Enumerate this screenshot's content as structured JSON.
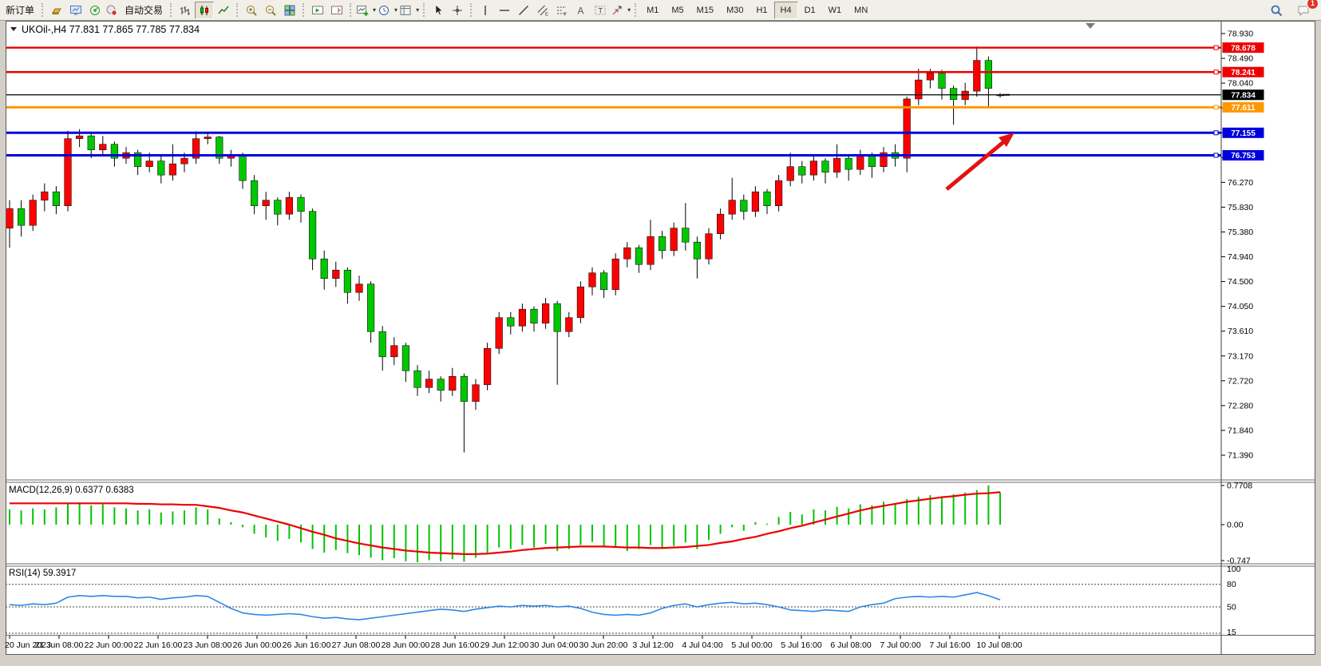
{
  "toolbar": {
    "new_order_label": "新订单",
    "autotrading_label": "自动交易",
    "timeframes": [
      "M1",
      "M5",
      "M15",
      "M30",
      "H1",
      "H4",
      "D1",
      "W1",
      "MN"
    ],
    "active_timeframe": "H4",
    "notification_count": "1",
    "icons": [
      "market-watch",
      "data-window",
      "navigator",
      "auto-trading",
      "bar-chart",
      "candlestick-chart",
      "line-chart",
      "zoom-in",
      "zoom-out",
      "tile-windows",
      "auto-scroll",
      "chart-shift",
      "insert-indicator",
      "period-selector",
      "chart-template",
      "cursor",
      "crosshair",
      "vertical-line",
      "horizontal-line",
      "trend-line",
      "equidistant-channel",
      "fibonacci",
      "text",
      "text-label",
      "arrow-objects",
      "search",
      "chat"
    ]
  },
  "chart": {
    "title_line": "UKOil-,H4 77.831 77.865 77.785 77.834",
    "symbol": "UKOil-",
    "timeframe": "H4"
  },
  "price_axis": {
    "ticks": [
      "78.930",
      "78.490",
      "78.040",
      "77.600",
      "77.150",
      "76.710",
      "76.270",
      "75.830",
      "75.380",
      "74.940",
      "74.500",
      "74.050",
      "73.610",
      "73.170",
      "72.720",
      "72.280",
      "71.840",
      "71.390"
    ]
  },
  "hlines": [
    {
      "label": "78.678",
      "value": 78.678,
      "color": "#ee0000"
    },
    {
      "label": "78.241",
      "value": 78.241,
      "color": "#ee0000"
    },
    {
      "label": "77.834",
      "value": 77.834,
      "color": "#000000"
    },
    {
      "label": "77.611",
      "value": 77.611,
      "color": "#ff9800"
    },
    {
      "label": "77.155",
      "value": 77.155,
      "color": "#0000dd"
    },
    {
      "label": "76.753",
      "value": 76.753,
      "color": "#0000dd"
    }
  ],
  "indicators": {
    "macd": {
      "label": "MACD(12,26,9) 0.6377 0.6383",
      "axis": [
        "0.7708",
        "0.00",
        "-0.747"
      ],
      "axis_values": [
        0.7708,
        0.0,
        -0.747
      ]
    },
    "rsi": {
      "label": "RSI(14) 59.3917",
      "axis": [
        "100",
        "80",
        "50",
        "15"
      ],
      "levels": [
        80,
        50,
        15
      ]
    }
  },
  "x_axis": {
    "labels": [
      "20 Jun 2023",
      "21 Jun 08:00",
      "22 Jun 00:00",
      "22 Jun 16:00",
      "23 Jun 08:00",
      "26 Jun 00:00",
      "26 Jun 16:00",
      "27 Jun 08:00",
      "28 Jun 00:00",
      "28 Jun 16:00",
      "29 Jun 12:00",
      "30 Jun 04:00",
      "30 Jun 20:00",
      "3 Jul 12:00",
      "4 Jul 04:00",
      "5 Jul 00:00",
      "5 Jul 16:00",
      "6 Jul 08:00",
      "7 Jul 00:00",
      "7 Jul 16:00",
      "10 Jul 08:00"
    ]
  },
  "annotations": {
    "trend_arrow_color": "#e31212"
  },
  "chart_data": {
    "type": "candlestick",
    "symbol": "UKOil-",
    "timeframe": "H4",
    "title": "UKOil-,H4",
    "last_ohlc": {
      "open": 77.831,
      "high": 77.865,
      "low": 77.785,
      "close": 77.834
    },
    "price_range": [
      71.39,
      78.93
    ],
    "up_color": "#ff0000",
    "down_color": "#00c800",
    "hline_values": [
      78.678,
      78.241,
      77.834,
      77.611,
      77.155,
      76.753
    ],
    "candles": [
      [
        75.45,
        75.95,
        75.1,
        75.8
      ],
      [
        75.8,
        75.95,
        75.3,
        75.5
      ],
      [
        75.5,
        76.05,
        75.4,
        75.95
      ],
      [
        75.95,
        76.25,
        75.75,
        76.1
      ],
      [
        76.1,
        76.2,
        75.7,
        75.85
      ],
      [
        75.85,
        77.19,
        75.75,
        77.05
      ],
      [
        77.05,
        77.22,
        76.9,
        77.1
      ],
      [
        77.1,
        77.15,
        76.7,
        76.85
      ],
      [
        76.85,
        77.1,
        76.75,
        76.95
      ],
      [
        76.95,
        77.0,
        76.55,
        76.7
      ],
      [
        76.7,
        76.9,
        76.6,
        76.8
      ],
      [
        76.8,
        76.85,
        76.4,
        76.55
      ],
      [
        76.55,
        76.8,
        76.45,
        76.65
      ],
      [
        76.65,
        76.75,
        76.25,
        76.4
      ],
      [
        76.4,
        76.95,
        76.3,
        76.6
      ],
      [
        76.6,
        76.8,
        76.45,
        76.7
      ],
      [
        76.7,
        77.18,
        76.6,
        77.05
      ],
      [
        77.05,
        77.16,
        76.95,
        77.08
      ],
      [
        77.08,
        77.1,
        76.6,
        76.7
      ],
      [
        76.7,
        76.85,
        76.55,
        76.75
      ],
      [
        76.75,
        76.8,
        76.15,
        76.3
      ],
      [
        76.3,
        76.4,
        75.7,
        75.85
      ],
      [
        75.85,
        76.1,
        75.6,
        75.95
      ],
      [
        75.95,
        76.0,
        75.5,
        75.7
      ],
      [
        75.7,
        76.1,
        75.6,
        76.0
      ],
      [
        76.0,
        76.05,
        75.55,
        75.75
      ],
      [
        75.75,
        75.8,
        74.7,
        74.9
      ],
      [
        74.9,
        75.05,
        74.35,
        74.55
      ],
      [
        74.55,
        74.85,
        74.4,
        74.7
      ],
      [
        74.7,
        74.75,
        74.1,
        74.3
      ],
      [
        74.3,
        74.6,
        74.15,
        74.45
      ],
      [
        74.45,
        74.5,
        73.4,
        73.6
      ],
      [
        73.6,
        73.7,
        72.9,
        73.15
      ],
      [
        73.15,
        73.5,
        73.0,
        73.35
      ],
      [
        73.35,
        73.4,
        72.7,
        72.9
      ],
      [
        72.9,
        73.0,
        72.45,
        72.6
      ],
      [
        72.6,
        72.9,
        72.5,
        72.75
      ],
      [
        72.75,
        72.8,
        72.35,
        72.55
      ],
      [
        72.55,
        72.95,
        72.45,
        72.8
      ],
      [
        72.8,
        72.85,
        71.44,
        72.35
      ],
      [
        72.35,
        72.75,
        72.2,
        72.65
      ],
      [
        72.65,
        73.4,
        72.55,
        73.3
      ],
      [
        73.3,
        73.95,
        73.2,
        73.85
      ],
      [
        73.85,
        73.95,
        73.55,
        73.7
      ],
      [
        73.7,
        74.1,
        73.6,
        74.0
      ],
      [
        74.0,
        74.05,
        73.6,
        73.75
      ],
      [
        73.75,
        74.2,
        73.65,
        74.1
      ],
      [
        74.1,
        74.15,
        72.65,
        73.6
      ],
      [
        73.6,
        73.95,
        73.5,
        73.85
      ],
      [
        73.85,
        74.5,
        73.75,
        74.4
      ],
      [
        74.4,
        74.75,
        74.25,
        74.65
      ],
      [
        74.65,
        74.7,
        74.2,
        74.35
      ],
      [
        74.35,
        75.0,
        74.25,
        74.9
      ],
      [
        74.9,
        75.2,
        74.75,
        75.1
      ],
      [
        75.1,
        75.15,
        74.65,
        74.8
      ],
      [
        74.8,
        75.6,
        74.7,
        75.3
      ],
      [
        75.3,
        75.4,
        74.9,
        75.05
      ],
      [
        75.05,
        75.55,
        74.95,
        75.45
      ],
      [
        75.45,
        75.9,
        75.05,
        75.2
      ],
      [
        75.2,
        75.3,
        74.55,
        74.9
      ],
      [
        74.9,
        75.45,
        74.8,
        75.35
      ],
      [
        75.35,
        75.8,
        75.25,
        75.7
      ],
      [
        75.7,
        76.35,
        75.6,
        75.95
      ],
      [
        75.95,
        76.05,
        75.6,
        75.75
      ],
      [
        75.75,
        76.2,
        75.65,
        76.1
      ],
      [
        76.1,
        76.15,
        75.7,
        75.85
      ],
      [
        75.85,
        76.4,
        75.75,
        76.3
      ],
      [
        76.3,
        76.8,
        76.2,
        76.55
      ],
      [
        76.55,
        76.65,
        76.25,
        76.4
      ],
      [
        76.4,
        76.75,
        76.3,
        76.65
      ],
      [
        76.65,
        76.7,
        76.25,
        76.45
      ],
      [
        76.45,
        76.95,
        76.35,
        76.7
      ],
      [
        76.7,
        76.75,
        76.3,
        76.5
      ],
      [
        76.5,
        76.85,
        76.4,
        76.75
      ],
      [
        76.75,
        76.8,
        76.35,
        76.55
      ],
      [
        76.55,
        76.9,
        76.45,
        76.8
      ],
      [
        76.8,
        76.95,
        76.55,
        76.7
      ],
      [
        76.7,
        77.8,
        76.45,
        77.76
      ],
      [
        77.76,
        78.3,
        77.65,
        78.1
      ],
      [
        78.1,
        78.3,
        77.95,
        78.22
      ],
      [
        78.22,
        78.28,
        77.75,
        77.95
      ],
      [
        77.95,
        78.0,
        77.3,
        77.75
      ],
      [
        77.75,
        78.05,
        77.65,
        77.9
      ],
      [
        77.9,
        78.7,
        77.8,
        78.45
      ],
      [
        78.45,
        78.52,
        77.62,
        77.95
      ],
      [
        77.831,
        77.865,
        77.785,
        77.834
      ]
    ],
    "macd": {
      "range": [
        -0.747,
        0.7708
      ],
      "histogram": [
        0.3,
        0.28,
        0.32,
        0.3,
        0.34,
        0.42,
        0.44,
        0.38,
        0.4,
        0.34,
        0.32,
        0.28,
        0.3,
        0.24,
        0.26,
        0.28,
        0.34,
        0.3,
        0.12,
        0.05,
        -0.05,
        -0.18,
        -0.25,
        -0.32,
        -0.28,
        -0.35,
        -0.48,
        -0.55,
        -0.5,
        -0.56,
        -0.6,
        -0.65,
        -0.7,
        -0.66,
        -0.72,
        -0.74,
        -0.7,
        -0.72,
        -0.68,
        -0.73,
        -0.65,
        -0.55,
        -0.45,
        -0.48,
        -0.4,
        -0.45,
        -0.38,
        -0.52,
        -0.48,
        -0.4,
        -0.34,
        -0.42,
        -0.45,
        -0.52,
        -0.48,
        -0.4,
        -0.45,
        -0.42,
        -0.35,
        -0.48,
        -0.3,
        -0.18,
        -0.05,
        -0.12,
        0.05,
        0.02,
        0.15,
        0.25,
        0.2,
        0.3,
        0.28,
        0.35,
        0.32,
        0.4,
        0.38,
        0.45,
        0.42,
        0.5,
        0.55,
        0.58,
        0.56,
        0.6,
        0.63,
        0.68,
        0.7708,
        0.6377
      ],
      "signal": [
        0.42,
        0.42,
        0.42,
        0.42,
        0.42,
        0.42,
        0.42,
        0.42,
        0.42,
        0.42,
        0.42,
        0.41,
        0.41,
        0.4,
        0.4,
        0.39,
        0.39,
        0.36,
        0.33,
        0.28,
        0.24,
        0.18,
        0.12,
        0.06,
        0.0,
        -0.07,
        -0.14,
        -0.2,
        -0.27,
        -0.32,
        -0.37,
        -0.41,
        -0.45,
        -0.48,
        -0.51,
        -0.53,
        -0.55,
        -0.56,
        -0.57,
        -0.58,
        -0.58,
        -0.57,
        -0.55,
        -0.53,
        -0.5,
        -0.48,
        -0.46,
        -0.45,
        -0.44,
        -0.43,
        -0.43,
        -0.43,
        -0.44,
        -0.45,
        -0.45,
        -0.46,
        -0.46,
        -0.45,
        -0.44,
        -0.42,
        -0.4,
        -0.36,
        -0.33,
        -0.28,
        -0.24,
        -0.18,
        -0.13,
        -0.07,
        -0.02,
        0.04,
        0.1,
        0.16,
        0.22,
        0.28,
        0.33,
        0.37,
        0.41,
        0.45,
        0.48,
        0.51,
        0.54,
        0.56,
        0.59,
        0.61,
        0.62,
        0.6383
      ]
    },
    "rsi": {
      "levels": [
        80,
        50,
        15
      ],
      "values": [
        53,
        52,
        54,
        53,
        55,
        63,
        65,
        64,
        65,
        64,
        64,
        62,
        63,
        60,
        62,
        63,
        65,
        64,
        56,
        48,
        42,
        40,
        39,
        40,
        41,
        40,
        37,
        35,
        36,
        34,
        33,
        35,
        37,
        39,
        41,
        43,
        45,
        47,
        46,
        44,
        47,
        49,
        51,
        50,
        52,
        51,
        52,
        50,
        51,
        48,
        43,
        40,
        39,
        40,
        39,
        42,
        48,
        52,
        54,
        50,
        53,
        55,
        56,
        54,
        55,
        53,
        50,
        46,
        45,
        44,
        46,
        45,
        44,
        50,
        53,
        55,
        61,
        63,
        64,
        63,
        64,
        63,
        66,
        69,
        65,
        59.39
      ]
    },
    "x_labels": [
      "20 Jun 2023",
      "21 Jun 08:00",
      "22 Jun 00:00",
      "22 Jun 16:00",
      "23 Jun 08:00",
      "26 Jun 00:00",
      "26 Jun 16:00",
      "27 Jun 08:00",
      "28 Jun 00:00",
      "28 Jun 16:00",
      "29 Jun 12:00",
      "30 Jun 04:00",
      "30 Jun 20:00",
      "3 Jul 12:00",
      "4 Jul 04:00",
      "5 Jul 00:00",
      "5 Jul 16:00",
      "6 Jul 08:00",
      "7 Jul 00:00",
      "7 Jul 16:00",
      "10 Jul 08:00"
    ]
  }
}
